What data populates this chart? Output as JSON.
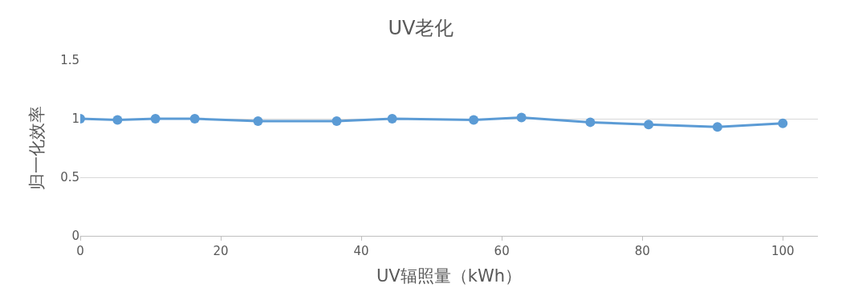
{
  "chart_data": {
    "type": "line",
    "title": "UV老化",
    "xlabel": "UV辐照量（kWh）",
    "ylabel": "归一化效率",
    "x": [
      0,
      5.3,
      10.7,
      16.3,
      25.3,
      36.5,
      44.4,
      56,
      62.8,
      72.6,
      80.9,
      90.7,
      100
    ],
    "series": [
      {
        "color": "#5b9bd5",
        "values": [
          1.0,
          0.99,
          1.0,
          1.0,
          0.98,
          0.98,
          1.0,
          0.99,
          1.01,
          0.97,
          0.95,
          0.93,
          0.96
        ]
      }
    ],
    "xlim": [
      0,
      105
    ],
    "xticks": [
      0,
      20,
      40,
      60,
      80,
      100
    ],
    "ylim": [
      0,
      1.5
    ],
    "yticks": [
      0,
      0.5,
      1,
      1.5
    ],
    "grid": "y",
    "marker": "circle",
    "line_style": "solid"
  }
}
